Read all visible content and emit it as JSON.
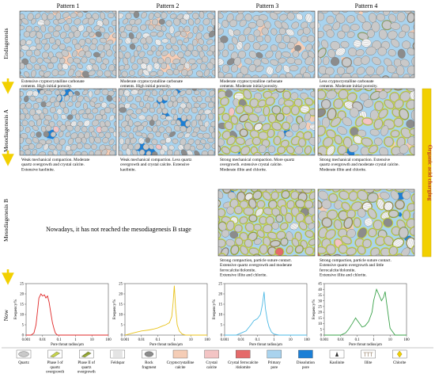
{
  "column_titles": [
    "Pattern 1",
    "Pattern 2",
    "Pattern 3",
    "Pattern 4"
  ],
  "row_labels": {
    "eodiagenesis": "Eodiagenesis",
    "meso_a": "Mesodiagenesis A",
    "meso_b": "Mesodiagenesis B",
    "now": "Now"
  },
  "organic_acid_label": "Organic acid charging",
  "not_reached_text": "Nowadays, it has not reached the mesodiagenesis B stage",
  "captions": {
    "eo": [
      [
        "Extensive cryptocrystalline carbonate",
        "cements. High initial porosity."
      ],
      [
        "Moderate cryptocrystalline carbonate",
        "cements. High initial porosity."
      ],
      [
        "Moderate cryptocrystalline carbonate",
        "cements. Moderate initial porosity."
      ],
      [
        "Less cryptocrystalline carbonate",
        "cements. Moderate initial porosity."
      ]
    ],
    "mesoA": [
      [
        "Weak mechanical compaction. Moderate",
        "quartz overgrowth and  crystal calcite.",
        "Extensive kaolinite."
      ],
      [
        "Weak mechanical compaction. Less quartz",
        "overgrowth and crystal calcite.  Extensive",
        "kaolinite."
      ],
      [
        "Strong mechanical compaction. More quartz",
        "overgrowth. extensive  crystal calcite.",
        "Moderate illite and chlorite."
      ],
      [
        "Strong mechanical compaction. Extensive",
        "quartz overgrowth and moderate crystal calcite.",
        "Moderate illite and chlorite."
      ]
    ],
    "mesoB": [
      [
        "Strong compaction, particle suture contact.",
        "Extensive quartz overgrowth and moderate",
        "ferrocalcite/dolomite.",
        "Extensive  illite and chlorite."
      ],
      [
        "Strong compaction, particle suture contact.",
        "Extensive quartz overgrowth and little",
        "ferrocalcite/dolomite.",
        "Extensive  illite and chlorite."
      ]
    ]
  },
  "legend": [
    {
      "id": "quartz",
      "label": [
        "Quartz"
      ]
    },
    {
      "id": "phase1",
      "label": [
        "Phase I of",
        "quartz",
        "overgrowth"
      ]
    },
    {
      "id": "phase2",
      "label": [
        "Phase II of",
        "quartz",
        "overgrowth"
      ]
    },
    {
      "id": "feldspar",
      "label": [
        "Feldspar"
      ]
    },
    {
      "id": "rock",
      "label": [
        "Rock",
        "fragment"
      ]
    },
    {
      "id": "crypto",
      "label": [
        "Cryptocrystalline",
        "calcite"
      ]
    },
    {
      "id": "crystal",
      "label": [
        "Crystal",
        "calcite"
      ]
    },
    {
      "id": "ferro",
      "label": [
        "Crystal ferrocalcite",
        "/dolomite"
      ]
    },
    {
      "id": "primary",
      "label": [
        "Primary",
        "pore"
      ]
    },
    {
      "id": "dissolution",
      "label": [
        "Dissolution",
        "pore"
      ]
    },
    {
      "id": "kaolinite",
      "label": [
        "Kaolinite"
      ]
    },
    {
      "id": "illite",
      "label": [
        "Illite"
      ]
    },
    {
      "id": "chlorite",
      "label": [
        "Chlorite"
      ]
    }
  ],
  "colors": {
    "grain": "#c9c9c9",
    "grain_edge": "#6f6f6f",
    "pore": "#a9d3ee",
    "dissolution": "#1b7fd6",
    "crypto": "#f5cdb6",
    "crystal_calcite": "#f3c4c4",
    "ferro": "#e56a6a",
    "rock": "#8c8c8c",
    "overgrowth": "#c6d34a",
    "chlorite": "#8a9c38",
    "illite": "#8a7358",
    "arrow": "#f2d000",
    "acid_bar": "#f2d000",
    "acid_text": "#c0392b"
  },
  "chart_data": [
    {
      "type": "line",
      "color": "#e02828",
      "x": [
        0.001,
        0.002,
        0.003,
        0.004,
        0.005,
        0.006,
        0.008,
        0.01,
        0.013,
        0.016,
        0.02,
        0.025,
        0.03,
        0.04,
        0.05,
        0.06,
        0.08,
        0.1,
        0.2,
        1,
        10,
        100
      ],
      "values": [
        0,
        0,
        1,
        5,
        12,
        18,
        20,
        19,
        19.5,
        18,
        19,
        16,
        12,
        6,
        3,
        1,
        0,
        0,
        0,
        0,
        0,
        0
      ],
      "xlabel": "Pore throat radius/μm",
      "ylabel": "Frequency/%",
      "xscale": "log",
      "xlim": [
        0.001,
        100
      ],
      "ylim": [
        0,
        25
      ],
      "xticks": [
        "0.001",
        "0.01",
        "0.1",
        "1",
        "10",
        "100"
      ],
      "yticks": [
        "0",
        "5",
        "10",
        "15",
        "20",
        "25"
      ]
    },
    {
      "type": "line",
      "color": "#e8c21a",
      "x": [
        0.001,
        0.003,
        0.01,
        0.03,
        0.06,
        0.1,
        0.2,
        0.3,
        0.5,
        0.7,
        0.85,
        1,
        1.2,
        1.5,
        2,
        3,
        5,
        10,
        100
      ],
      "values": [
        0,
        1,
        2,
        2.5,
        3,
        3.5,
        4.5,
        5,
        6,
        9,
        16,
        24,
        13,
        5,
        2,
        0.5,
        0,
        0,
        0
      ],
      "xlabel": "Pore throat radius/μm",
      "ylabel": "Frequency/%",
      "xscale": "log",
      "xlim": [
        0.001,
        100
      ],
      "ylim": [
        0,
        25
      ],
      "xticks": [
        "0.001",
        "0.01",
        "0.1",
        "1",
        "10",
        "100"
      ],
      "yticks": [
        "0",
        "5",
        "10",
        "15",
        "20",
        "25"
      ]
    },
    {
      "type": "line",
      "color": "#4bb8e4",
      "x": [
        0.001,
        0.005,
        0.01,
        0.02,
        0.04,
        0.06,
        0.1,
        0.15,
        0.2,
        0.25,
        0.3,
        0.4,
        0.5,
        0.7,
        1,
        2,
        10,
        100
      ],
      "values": [
        0,
        0,
        1,
        2,
        5,
        7,
        8,
        10,
        15,
        21,
        13,
        7,
        4,
        1.5,
        0.5,
        0,
        0,
        0
      ],
      "xlabel": "Pore throat radius/μm",
      "ylabel": "Frequency/%",
      "xscale": "log",
      "xlim": [
        0.001,
        100
      ],
      "ylim": [
        0,
        25
      ],
      "xticks": [
        "0.001",
        "0.01",
        "0.1",
        "1",
        "10",
        "100"
      ],
      "yticks": [
        "0",
        "5",
        "10",
        "15",
        "20",
        "25"
      ]
    },
    {
      "type": "line",
      "color": "#3aa24a",
      "x": [
        0.001,
        0.005,
        0.01,
        0.02,
        0.03,
        0.05,
        0.08,
        0.1,
        0.2,
        0.3,
        0.5,
        0.8,
        1,
        1.5,
        2,
        3,
        4,
        5,
        7,
        10,
        20,
        100
      ],
      "values": [
        0,
        0,
        0,
        2,
        5,
        10,
        15,
        13,
        7,
        8,
        12,
        20,
        30,
        40,
        36,
        30,
        33,
        38,
        22,
        6,
        0,
        0
      ],
      "xlabel": "Pore throat radius/μm",
      "ylabel": "Frequency/%",
      "xscale": "log",
      "xlim": [
        0.001,
        100
      ],
      "ylim": [
        0,
        45
      ],
      "xticks": [
        "0.001",
        "0.01",
        "0.1",
        "1",
        "10",
        "100"
      ],
      "yticks": [
        "0",
        "5",
        "10",
        "15",
        "20",
        "25",
        "30",
        "35",
        "40",
        "45"
      ]
    }
  ]
}
